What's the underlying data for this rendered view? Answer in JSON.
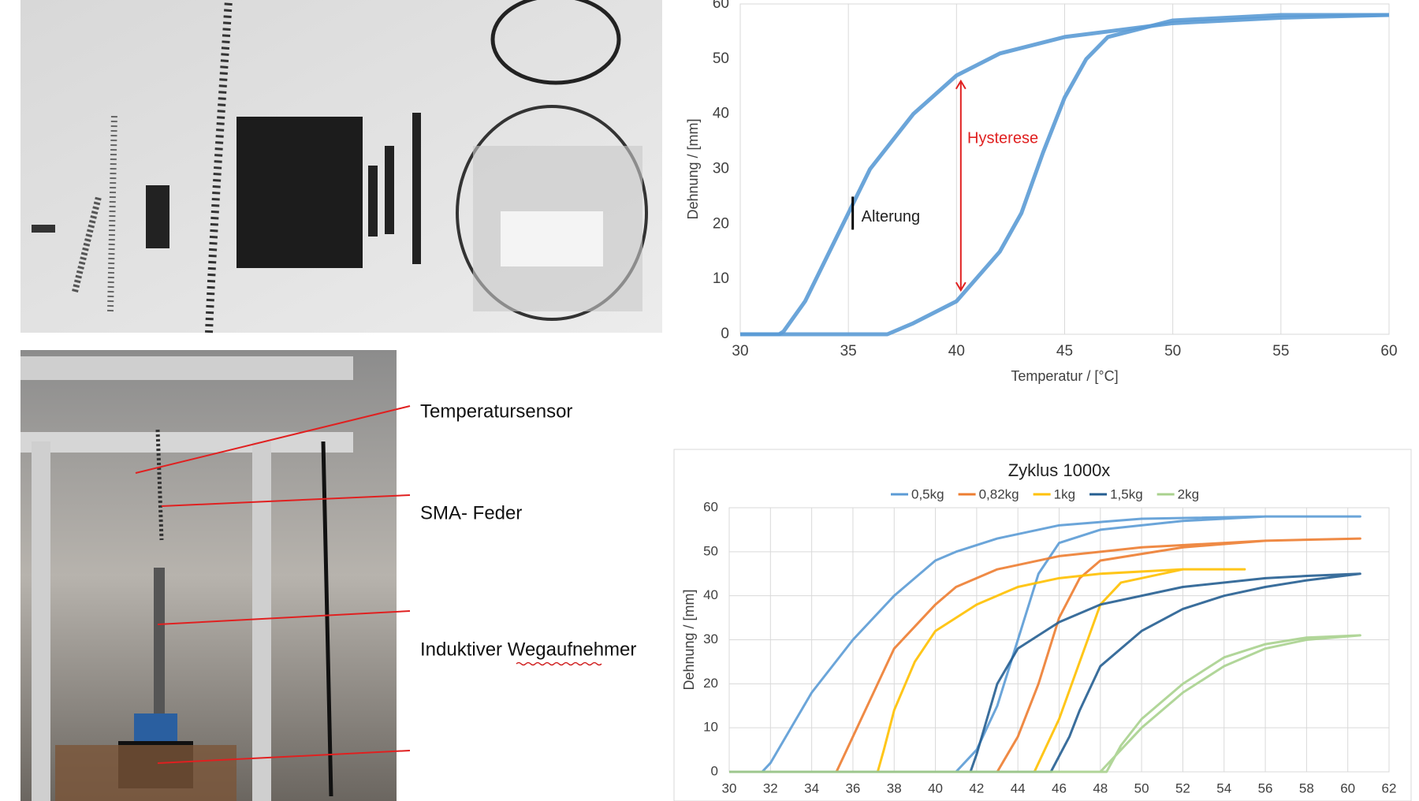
{
  "chart_data": [
    {
      "type": "line",
      "xlabel": "Temperatur / [°C]",
      "ylabel": "Dehnung / [mm]",
      "xlim": [
        30,
        60
      ],
      "xticks": [
        30,
        35,
        40,
        45,
        50,
        55,
        60
      ],
      "ylim": [
        0,
        60
      ],
      "yticks": [
        0,
        10,
        20,
        30,
        40,
        50,
        60
      ],
      "grid_x": true,
      "grid_y": false,
      "annotations": [
        "Hysterese",
        "Alterung"
      ],
      "series": [
        {
          "color": "#5b9bd5",
          "x": [
            30,
            36.8,
            38,
            40,
            42,
            43,
            44,
            45,
            46,
            47,
            50,
            55,
            60
          ],
          "values": [
            0,
            0,
            2,
            6,
            15,
            22,
            33,
            43,
            50,
            54,
            57,
            58,
            58
          ]
        },
        {
          "color": "#5b9bd5",
          "x": [
            60,
            55,
            50,
            45,
            42,
            40,
            38,
            36,
            35,
            34,
            33,
            32,
            31.8,
            30
          ],
          "values": [
            58,
            57.5,
            56.5,
            54,
            51,
            47,
            40,
            30,
            22,
            14,
            6,
            0.5,
            0,
            0
          ]
        }
      ]
    },
    {
      "type": "line",
      "title": "Zyklus 1000x",
      "ylabel": "Dehnung / [mm]",
      "xlim": [
        30,
        62
      ],
      "xticks": [
        30,
        32,
        34,
        36,
        38,
        40,
        42,
        44,
        46,
        48,
        50,
        52,
        54,
        56,
        58,
        60,
        62
      ],
      "ylim": [
        0,
        60
      ],
      "yticks": [
        0,
        10,
        20,
        30,
        40,
        50,
        60
      ],
      "grid_x": true,
      "grid_y": true,
      "legend": "top",
      "series": [
        {
          "name": "0,5kg",
          "color": "#5b9bd5",
          "x": [
            30,
            41,
            42,
            43,
            44,
            45,
            46,
            48,
            52,
            56,
            60.6,
            56,
            50,
            46,
            43,
            41,
            40,
            38,
            36,
            34,
            33,
            32,
            31.6,
            30
          ],
          "values": [
            0,
            0,
            5,
            15,
            30,
            45,
            52,
            55,
            57,
            58,
            58,
            58,
            57.5,
            56,
            53,
            50,
            48,
            40,
            30,
            18,
            10,
            2,
            0,
            0
          ]
        },
        {
          "name": "0,82kg",
          "color": "#ed7d31",
          "x": [
            30,
            43,
            44,
            45,
            46,
            47,
            48,
            52,
            56,
            60.6,
            56,
            50,
            46,
            43,
            41,
            40,
            38,
            37,
            36,
            35.2,
            30
          ],
          "values": [
            0,
            0,
            8,
            20,
            35,
            44,
            48,
            51,
            52.5,
            53,
            52.5,
            51,
            49,
            46,
            42,
            38,
            28,
            18,
            8,
            0,
            0
          ]
        },
        {
          "name": "1kg",
          "color": "#ffc000",
          "x": [
            30,
            44.8,
            46,
            47,
            48,
            49,
            52,
            55,
            52,
            48,
            46,
            44,
            42,
            40,
            39,
            38,
            37.5,
            37.2,
            30
          ],
          "values": [
            0,
            0,
            12,
            25,
            38,
            43,
            46,
            46,
            46,
            45,
            44,
            42,
            38,
            32,
            25,
            14,
            5,
            0,
            0
          ]
        },
        {
          "name": "1,5kg",
          "color": "#255e91",
          "x": [
            30,
            45.6,
            46.5,
            47,
            48,
            50,
            52,
            54,
            56,
            58,
            60.6,
            58,
            56,
            52,
            48,
            46,
            44,
            43,
            42.5,
            42,
            41.7,
            30
          ],
          "values": [
            0,
            0,
            8,
            14,
            24,
            32,
            37,
            40,
            42,
            43.5,
            45,
            44.5,
            44,
            42,
            38,
            34,
            28,
            20,
            12,
            4,
            0,
            0
          ]
        },
        {
          "name": "2kg",
          "color": "#a9d18e",
          "x": [
            30,
            48,
            49,
            50,
            52,
            54,
            56,
            58,
            60.6,
            58,
            56,
            54,
            52,
            50,
            49,
            48.3,
            30
          ],
          "values": [
            0,
            0,
            5,
            10,
            18,
            24,
            28,
            30,
            31,
            30.5,
            29,
            26,
            20,
            12,
            6,
            0,
            0
          ]
        }
      ]
    }
  ],
  "photo_labels": [
    "Temperatursensor",
    "SMA- Feder",
    "Induktiver Wegaufnehmer"
  ]
}
